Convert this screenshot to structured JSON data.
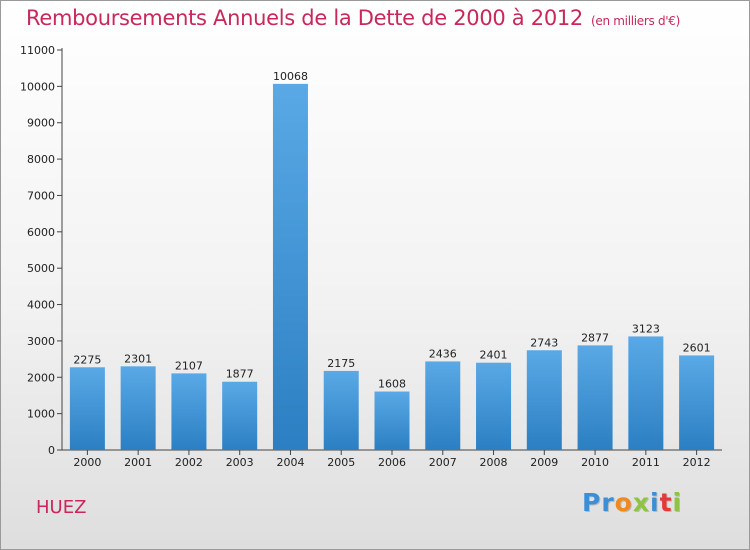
{
  "chart_data": {
    "type": "bar",
    "title": "Remboursements Annuels de la Dette de 2000 à 2012",
    "unit_note": "(en milliers d'€)",
    "categories": [
      "2000",
      "2001",
      "2002",
      "2003",
      "2004",
      "2005",
      "2006",
      "2007",
      "2008",
      "2009",
      "2010",
      "2011",
      "2012"
    ],
    "values": [
      2275,
      2301,
      2107,
      1877,
      10068,
      2175,
      1608,
      2436,
      2401,
      2743,
      2877,
      3123,
      2601
    ],
    "ylim": [
      0,
      11000
    ],
    "yticks": [
      0,
      1000,
      2000,
      3000,
      4000,
      5000,
      6000,
      7000,
      8000,
      9000,
      10000,
      11000
    ],
    "grid": false,
    "bar_color_top": "#5aa9e6",
    "bar_color_bottom": "#2b7fc2"
  },
  "commune": "HUEZ",
  "logo": {
    "letters": [
      "P",
      "r",
      "o",
      "x",
      "i",
      "t",
      "i"
    ],
    "colors": [
      "#3a8fd6",
      "#3a8fd6",
      "#f08a1c",
      "#8cc63f",
      "#3a8fd6",
      "#e23a3a",
      "#8cc63f"
    ]
  }
}
